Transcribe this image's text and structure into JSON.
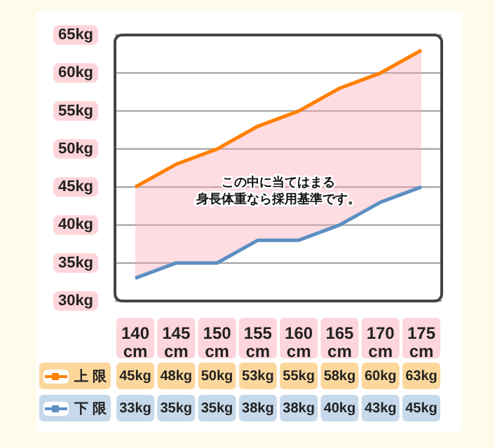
{
  "chart_data": {
    "type": "line",
    "categories": [
      "140 cm",
      "145 cm",
      "150 cm",
      "155 cm",
      "160 cm",
      "165 cm",
      "170 cm",
      "175 cm"
    ],
    "series": [
      {
        "name": "上 限",
        "color": "#ff8000",
        "values": [
          45,
          48,
          50,
          53,
          55,
          58,
          60,
          63
        ],
        "value_labels": [
          "45kg",
          "48kg",
          "50kg",
          "53kg",
          "55kg",
          "58kg",
          "60kg",
          "63kg"
        ],
        "lower": [
          33,
          35,
          35,
          38,
          38,
          40,
          43,
          45
        ],
        "upper": [
          45,
          48,
          50,
          53,
          55,
          58,
          60,
          63
        ]
      },
      {
        "name": "下 限",
        "color": "#5b8fc4",
        "values": [
          33,
          35,
          35,
          38,
          38,
          40,
          43,
          45
        ],
        "value_labels": [
          "33kg",
          "35kg",
          "35kg",
          "38kg",
          "38kg",
          "40kg",
          "43kg",
          "45kg"
        ]
      }
    ],
    "ylim": [
      30,
      65
    ],
    "yticks": [
      {
        "value": 30,
        "label": "30kg"
      },
      {
        "value": 35,
        "label": "35kg"
      },
      {
        "value": 40,
        "label": "40kg"
      },
      {
        "value": 45,
        "label": "45kg"
      },
      {
        "value": 50,
        "label": "50kg"
      },
      {
        "value": 55,
        "label": "55kg"
      },
      {
        "value": 60,
        "label": "60kg"
      },
      {
        "value": 65,
        "label": "65kg"
      }
    ],
    "annotations": [
      "この中に当てはまる身長体重なら採用基準です。"
    ],
    "grid": "y",
    "legend": "bottom left",
    "marker": "none",
    "line_style": "solid"
  }
}
